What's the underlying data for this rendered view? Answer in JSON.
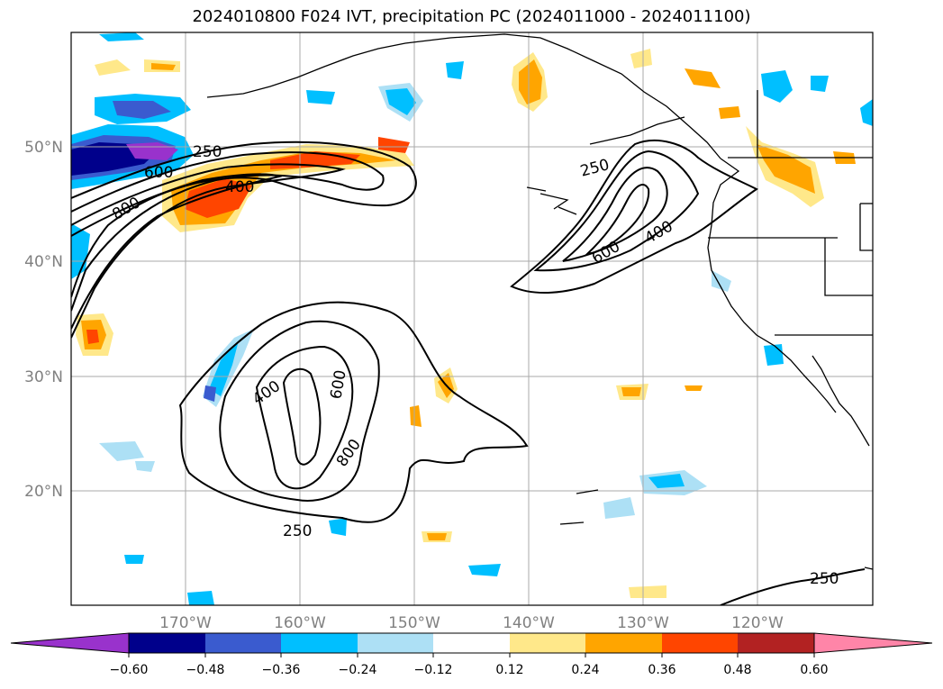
{
  "title": "2024010800 F024 IVT, precipitation PC (2024011000 - 2024011100)",
  "map": {
    "lon_range": [
      -180,
      -110
    ],
    "lat_range": [
      10,
      60
    ],
    "lat_labels": [
      "50°N",
      "40°N",
      "30°N",
      "20°N"
    ],
    "lon_labels": [
      "170°W",
      "160°W",
      "150°W",
      "140°W",
      "130°W",
      "120°W"
    ],
    "grid": true,
    "ivt_contour_labels": [
      "250",
      "400",
      "600",
      "800",
      "250",
      "400",
      "600",
      "250",
      "400",
      "600",
      "800",
      "250"
    ]
  },
  "colorbar": {
    "ticks": [
      "−0.60",
      "−0.48",
      "−0.36",
      "−0.24",
      "−0.12",
      "0.12",
      "0.24",
      "0.36",
      "0.48",
      "0.60"
    ],
    "colors": [
      "#9932CC",
      "#00008B",
      "#3A5BCF",
      "#00BFFF",
      "#ADE0F5",
      "#FFFFFF",
      "#FFE88A",
      "#FFA500",
      "#FF4500",
      "#B22222",
      "#FF85A8"
    ]
  }
}
